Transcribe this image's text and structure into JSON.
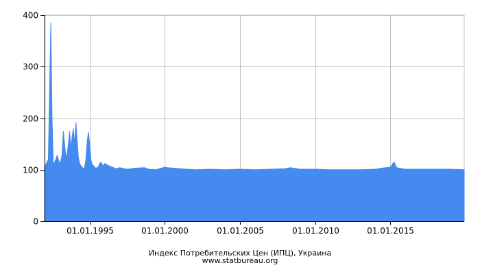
{
  "chart_data": {
    "type": "area",
    "title": "Индекс Потребительских Цен (ИПЦ), Украина",
    "source": "www.statbureau.org",
    "xlabel": "",
    "ylabel": "",
    "x_range": [
      "1992-01-01",
      "2019-12-01"
    ],
    "ylim": [
      0,
      400
    ],
    "y_ticks": [
      0,
      100,
      200,
      300,
      400
    ],
    "x_ticks": [
      {
        "date": "1995-01-01",
        "label": "01.01.1995"
      },
      {
        "date": "2000-01-01",
        "label": "01.01.2000"
      },
      {
        "date": "2005-01-01",
        "label": "01.01.2005"
      },
      {
        "date": "2010-01-01",
        "label": "01.01.2010"
      },
      {
        "date": "2015-01-01",
        "label": "01.01.2015"
      }
    ],
    "grid": true,
    "legend": "none",
    "fill_color": "#448aef",
    "axis_color": "#000000",
    "grid_color": "#c0c0c0",
    "series": [
      {
        "x": [
          "1992-01-01",
          "1992-02-01",
          "1992-03-01",
          "1992-04-01",
          "1992-05-01",
          "1992-06-01",
          "1992-07-01",
          "1992-08-01",
          "1992-09-01",
          "1992-10-01",
          "1992-11-01",
          "1992-12-01",
          "1993-01-01",
          "1993-02-01",
          "1993-03-01",
          "1993-04-01",
          "1993-05-01",
          "1993-06-01",
          "1993-07-01",
          "1993-08-01",
          "1993-09-01",
          "1993-10-01",
          "1993-11-01",
          "1993-12-01",
          "1994-01-01",
          "1994-02-01",
          "1994-03-01",
          "1994-04-01",
          "1994-05-01",
          "1994-06-01",
          "1994-07-01",
          "1994-08-01",
          "1994-09-01",
          "1994-10-01",
          "1994-11-01",
          "1994-12-01",
          "1995-01-01",
          "1995-02-01",
          "1995-03-01",
          "1995-04-01",
          "1995-05-01",
          "1995-06-01",
          "1995-07-01",
          "1995-08-01",
          "1995-09-01",
          "1995-10-01",
          "1995-11-01",
          "1995-12-01",
          "1996-01-01",
          "1996-04-01",
          "1996-07-01",
          "1996-10-01",
          "1997-01-01",
          "1997-07-01",
          "1998-01-01",
          "1998-09-01",
          "1998-12-01",
          "1999-06-01",
          "2000-01-01",
          "2000-03-01",
          "2001-01-01",
          "2002-01-01",
          "2003-01-01",
          "2004-01-01",
          "2005-01-01",
          "2006-01-01",
          "2007-01-01",
          "2008-01-01",
          "2008-05-01",
          "2009-01-01",
          "2010-01-01",
          "2011-01-01",
          "2012-01-01",
          "2013-01-01",
          "2014-01-01",
          "2014-06-01",
          "2015-01-01",
          "2015-02-01",
          "2015-03-01",
          "2015-04-01",
          "2015-06-01",
          "2016-01-01",
          "2017-01-01",
          "2018-01-01",
          "2019-01-01",
          "2019-12-01"
        ],
        "values": [
          105,
          110,
          115,
          120,
          250,
          385,
          200,
          110,
          115,
          120,
          128,
          120,
          112,
          118,
          130,
          175,
          150,
          125,
          130,
          150,
          175,
          140,
          165,
          180,
          150,
          192,
          160,
          125,
          112,
          108,
          105,
          102,
          105,
          120,
          155,
          173,
          150,
          120,
          110,
          108,
          105,
          103,
          104,
          106,
          112,
          115,
          110,
          108,
          112,
          108,
          105,
          102,
          104,
          101,
          103,
          104,
          101,
          100,
          105,
          104,
          102,
          100,
          101,
          100,
          101,
          100,
          101,
          102,
          104,
          101,
          101,
          100,
          100,
          100,
          101,
          103,
          105,
          108,
          112,
          115,
          104,
          101,
          101,
          101,
          101,
          100
        ]
      }
    ]
  }
}
